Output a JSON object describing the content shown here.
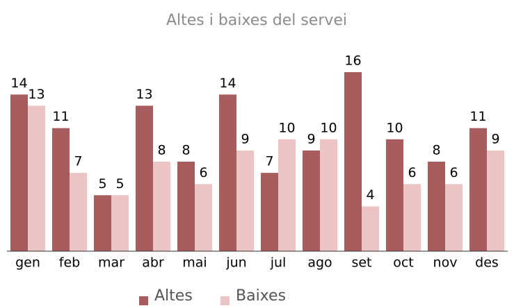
{
  "chart_data": {
    "type": "bar",
    "title": "Altes i baixes del servei",
    "categories": [
      "gen",
      "feb",
      "mar",
      "abr",
      "mai",
      "jun",
      "jul",
      "ago",
      "set",
      "oct",
      "nov",
      "des"
    ],
    "series": [
      {
        "name": "Altes",
        "color": "#a85c5e",
        "values": [
          14,
          11,
          5,
          13,
          8,
          14,
          7,
          9,
          16,
          10,
          8,
          11
        ]
      },
      {
        "name": "Baixes",
        "color": "#ecc4c4",
        "values": [
          13,
          7,
          5,
          8,
          6,
          9,
          10,
          10,
          4,
          6,
          6,
          9
        ]
      }
    ],
    "ylim": [
      0,
      16
    ],
    "legend": "bottom"
  }
}
